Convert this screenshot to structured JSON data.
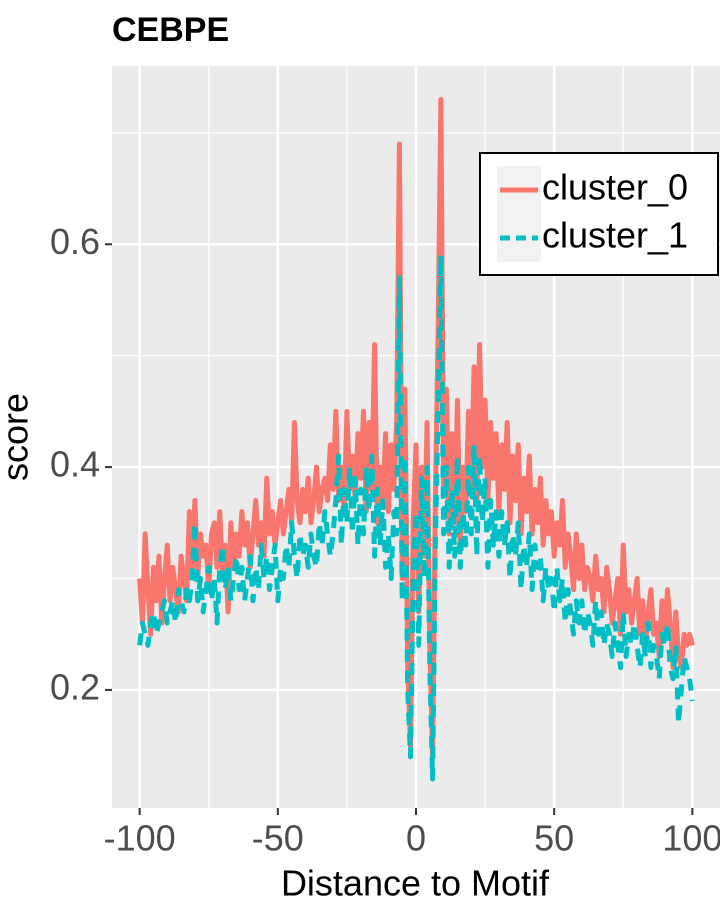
{
  "chart_data": {
    "type": "line",
    "title": "CEBPE",
    "x_label": "Distance to Motif",
    "y_label": "score",
    "x": [
      -100,
      -99,
      -98,
      -97,
      -96,
      -95,
      -94,
      -93,
      -92,
      -91,
      -90,
      -89,
      -88,
      -87,
      -86,
      -85,
      -84,
      -83,
      -82,
      -81,
      -80,
      -79,
      -78,
      -77,
      -76,
      -75,
      -74,
      -73,
      -72,
      -71,
      -70,
      -69,
      -68,
      -67,
      -66,
      -65,
      -64,
      -63,
      -62,
      -61,
      -60,
      -59,
      -58,
      -57,
      -56,
      -55,
      -54,
      -53,
      -52,
      -51,
      -50,
      -49,
      -48,
      -47,
      -46,
      -45,
      -44,
      -43,
      -42,
      -41,
      -40,
      -39,
      -38,
      -37,
      -36,
      -35,
      -34,
      -33,
      -32,
      -31,
      -30,
      -29,
      -28,
      -27,
      -26,
      -25,
      -24,
      -23,
      -22,
      -21,
      -20,
      -19,
      -18,
      -17,
      -16,
      -15,
      -14,
      -13,
      -12,
      -11,
      -10,
      -9,
      -8,
      -7,
      -6,
      -5,
      -4,
      -3,
      -2,
      -1,
      0,
      1,
      2,
      3,
      4,
      5,
      6,
      7,
      8,
      9,
      10,
      11,
      12,
      13,
      14,
      15,
      16,
      17,
      18,
      19,
      20,
      21,
      22,
      23,
      24,
      25,
      26,
      27,
      28,
      29,
      30,
      31,
      32,
      33,
      34,
      35,
      36,
      37,
      38,
      39,
      40,
      41,
      42,
      43,
      44,
      45,
      46,
      47,
      48,
      49,
      50,
      51,
      52,
      53,
      54,
      55,
      56,
      57,
      58,
      59,
      60,
      61,
      62,
      63,
      64,
      65,
      66,
      67,
      68,
      69,
      70,
      71,
      72,
      73,
      74,
      75,
      76,
      77,
      78,
      79,
      80,
      81,
      82,
      83,
      84,
      85,
      86,
      87,
      88,
      89,
      90,
      91,
      92,
      93,
      94,
      95,
      96,
      97,
      98,
      99,
      100
    ],
    "series": [
      {
        "name": "cluster_0",
        "color": "#F8766D",
        "dash": false,
        "values": [
          0.3,
          0.26,
          0.34,
          0.29,
          0.25,
          0.31,
          0.28,
          0.32,
          0.26,
          0.3,
          0.33,
          0.28,
          0.31,
          0.29,
          0.27,
          0.32,
          0.3,
          0.28,
          0.36,
          0.31,
          0.37,
          0.3,
          0.34,
          0.32,
          0.33,
          0.29,
          0.34,
          0.35,
          0.31,
          0.36,
          0.3,
          0.33,
          0.27,
          0.35,
          0.31,
          0.34,
          0.32,
          0.36,
          0.33,
          0.35,
          0.31,
          0.34,
          0.37,
          0.33,
          0.35,
          0.32,
          0.39,
          0.34,
          0.36,
          0.33,
          0.35,
          0.37,
          0.34,
          0.36,
          0.38,
          0.35,
          0.44,
          0.37,
          0.35,
          0.38,
          0.36,
          0.39,
          0.35,
          0.37,
          0.4,
          0.36,
          0.38,
          0.39,
          0.37,
          0.42,
          0.38,
          0.45,
          0.37,
          0.4,
          0.36,
          0.45,
          0.38,
          0.41,
          0.37,
          0.43,
          0.39,
          0.45,
          0.36,
          0.44,
          0.38,
          0.51,
          0.35,
          0.4,
          0.37,
          0.43,
          0.36,
          0.42,
          0.38,
          0.44,
          0.69,
          0.3,
          0.47,
          0.22,
          0.15,
          0.35,
          0.42,
          0.27,
          0.4,
          0.32,
          0.44,
          0.24,
          0.14,
          0.37,
          0.52,
          0.73,
          0.38,
          0.47,
          0.34,
          0.43,
          0.35,
          0.46,
          0.33,
          0.4,
          0.36,
          0.45,
          0.38,
          0.49,
          0.37,
          0.51,
          0.4,
          0.46,
          0.37,
          0.44,
          0.39,
          0.43,
          0.36,
          0.42,
          0.38,
          0.44,
          0.35,
          0.41,
          0.37,
          0.42,
          0.34,
          0.39,
          0.36,
          0.41,
          0.34,
          0.38,
          0.35,
          0.39,
          0.33,
          0.37,
          0.34,
          0.36,
          0.32,
          0.35,
          0.33,
          0.37,
          0.31,
          0.34,
          0.32,
          0.29,
          0.34,
          0.3,
          0.33,
          0.29,
          0.31,
          0.3,
          0.28,
          0.32,
          0.29,
          0.3,
          0.27,
          0.31,
          0.29,
          0.26,
          0.28,
          0.3,
          0.25,
          0.33,
          0.27,
          0.29,
          0.26,
          0.28,
          0.3,
          0.25,
          0.28,
          0.24,
          0.27,
          0.29,
          0.25,
          0.26,
          0.23,
          0.28,
          0.25,
          0.29,
          0.26,
          0.22,
          0.27,
          0.23,
          0.22,
          0.25,
          0.24,
          0.25,
          0.24
        ]
      },
      {
        "name": "cluster_1",
        "color": "#00BFC4",
        "dash": true,
        "values": [
          0.24,
          0.26,
          0.25,
          0.24,
          0.26,
          0.27,
          0.25,
          0.26,
          0.27,
          0.28,
          0.26,
          0.27,
          0.28,
          0.26,
          0.29,
          0.28,
          0.27,
          0.29,
          0.28,
          0.3,
          0.35,
          0.28,
          0.3,
          0.27,
          0.29,
          0.31,
          0.28,
          0.3,
          0.26,
          0.31,
          0.33,
          0.29,
          0.31,
          0.28,
          0.3,
          0.32,
          0.29,
          0.31,
          0.28,
          0.3,
          0.32,
          0.28,
          0.31,
          0.29,
          0.33,
          0.3,
          0.32,
          0.29,
          0.31,
          0.33,
          0.28,
          0.31,
          0.3,
          0.33,
          0.31,
          0.35,
          0.32,
          0.3,
          0.34,
          0.32,
          0.33,
          0.31,
          0.34,
          0.32,
          0.31,
          0.35,
          0.33,
          0.36,
          0.34,
          0.32,
          0.34,
          0.37,
          0.41,
          0.33,
          0.38,
          0.35,
          0.4,
          0.34,
          0.39,
          0.33,
          0.38,
          0.34,
          0.4,
          0.36,
          0.41,
          0.32,
          0.38,
          0.33,
          0.37,
          0.31,
          0.34,
          0.3,
          0.36,
          0.34,
          0.57,
          0.28,
          0.41,
          0.2,
          0.14,
          0.3,
          0.36,
          0.24,
          0.39,
          0.3,
          0.4,
          0.22,
          0.12,
          0.33,
          0.45,
          0.59,
          0.34,
          0.4,
          0.31,
          0.38,
          0.32,
          0.41,
          0.31,
          0.36,
          0.33,
          0.4,
          0.34,
          0.42,
          0.32,
          0.41,
          0.35,
          0.39,
          0.31,
          0.37,
          0.33,
          0.36,
          0.32,
          0.36,
          0.33,
          0.35,
          0.3,
          0.34,
          0.32,
          0.35,
          0.29,
          0.33,
          0.31,
          0.34,
          0.29,
          0.33,
          0.31,
          0.32,
          0.28,
          0.31,
          0.29,
          0.3,
          0.27,
          0.31,
          0.28,
          0.3,
          0.26,
          0.29,
          0.27,
          0.25,
          0.28,
          0.26,
          0.28,
          0.25,
          0.27,
          0.26,
          0.24,
          0.28,
          0.25,
          0.27,
          0.24,
          0.26,
          0.25,
          0.23,
          0.26,
          0.24,
          0.22,
          0.27,
          0.23,
          0.25,
          0.24,
          0.26,
          0.24,
          0.22,
          0.25,
          0.23,
          0.26,
          0.22,
          0.24,
          0.23,
          0.21,
          0.25,
          0.24,
          0.26,
          0.22,
          0.21,
          0.24,
          0.17,
          0.2,
          0.23,
          0.22,
          0.21,
          0.19
        ]
      }
    ],
    "xlim": [
      -110,
      110
    ],
    "ylim": [
      0.094,
      0.76
    ],
    "xticks": [
      -100,
      -50,
      0,
      50,
      100
    ],
    "yticks": [
      0.2,
      0.4,
      0.6
    ],
    "x_minor_ticks": [
      -75,
      -25,
      25,
      75
    ],
    "y_minor_ticks": [
      0.3,
      0.5,
      0.7
    ],
    "grid": true,
    "legend": "top-right"
  }
}
